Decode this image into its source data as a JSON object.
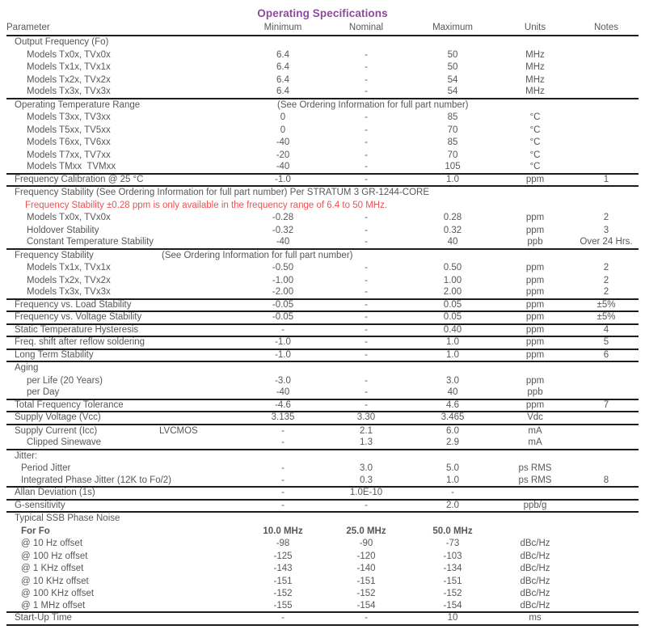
{
  "title": "Operating Specifications",
  "colors": {
    "title_purple": "#8d4a9b",
    "warning_red": "#f15050",
    "body_gray": "#565759",
    "rule_black": "#1c1c1c"
  },
  "columns": [
    "Parameter",
    "Minimum",
    "Nominal",
    "Maximum",
    "Units",
    "Notes"
  ],
  "see_ordering_note": "(See Ordering Information for full part number)",
  "rows": [
    {
      "type": "section",
      "label": "Output Frequency (Fo)",
      "indent": 0,
      "rule": false
    },
    {
      "type": "data",
      "label": "Models Tx0x, TVx0x",
      "indent": 1,
      "min": "6.4",
      "nom": "-",
      "max": "50",
      "units": "MHz",
      "notes": "",
      "rule": false
    },
    {
      "type": "data",
      "label": "Models Tx1x, TVx1x",
      "indent": 1,
      "min": "6.4",
      "nom": "-",
      "max": "50",
      "units": "MHz",
      "notes": "",
      "rule": false
    },
    {
      "type": "data",
      "label": "Models Tx2x, TVx2x",
      "indent": 1,
      "min": "6.4",
      "nom": "-",
      "max": "54",
      "units": "MHz",
      "notes": "",
      "rule": false
    },
    {
      "type": "data",
      "label": "Models Tx3x, TVx3x",
      "indent": 1,
      "min": "6.4",
      "nom": "-",
      "max": "54",
      "units": "MHz",
      "notes": "",
      "rule": true
    },
    {
      "type": "span_mid",
      "label": "Operating Temperature Range",
      "indent": 0,
      "span_text": "(See Ordering Information for full part number)",
      "rule": false
    },
    {
      "type": "data",
      "label": "Models T3xx, TV3xx",
      "indent": 1,
      "min": "0",
      "nom": "-",
      "max": "85",
      "units": "°C",
      "notes": "",
      "rule": false
    },
    {
      "type": "data",
      "label": "Models T5xx, TV5xx",
      "indent": 1,
      "min": "0",
      "nom": "-",
      "max": "70",
      "units": "°C",
      "notes": "",
      "rule": false
    },
    {
      "type": "data",
      "label": "Models T6xx, TV6xx",
      "indent": 1,
      "min": "-40",
      "nom": "-",
      "max": "85",
      "units": "°C",
      "notes": "",
      "rule": false
    },
    {
      "type": "data",
      "label": "Models T7xx, TV7xx",
      "indent": 1,
      "min": "-20",
      "nom": "-",
      "max": "70",
      "units": "°C",
      "notes": "",
      "rule": false
    },
    {
      "type": "data",
      "label": "Models TMxx  TVMxx",
      "indent": 1,
      "min": "-40",
      "nom": "-",
      "max": "105",
      "units": "°C",
      "notes": "",
      "rule": true
    },
    {
      "type": "data",
      "label": "Frequency Calibration @ 25 °C",
      "indent": 0,
      "min": "-1.0",
      "nom": "-",
      "max": "1.0",
      "units": "ppm",
      "notes": "1",
      "rule": true
    },
    {
      "type": "full",
      "label": "Frequency Stability (See Ordering Information for full part number) Per STRATUM 3 GR-1244-CORE",
      "indent": 0,
      "rule": false
    },
    {
      "type": "red",
      "label": "Frequency Stability ±0.28 ppm is only available in the frequency range of 6.4 to 50 MHz.",
      "indent": 0,
      "rule": false
    },
    {
      "type": "data",
      "label": "Models Tx0x, TVx0x",
      "indent": 1,
      "min": "-0.28",
      "nom": "-",
      "max": "0.28",
      "units": "ppm",
      "notes": "2",
      "rule": false
    },
    {
      "type": "data",
      "label": "Holdover Stability",
      "indent": 1,
      "min": "-0.32",
      "nom": "-",
      "max": "0.32",
      "units": "ppm",
      "notes": "3",
      "rule": false
    },
    {
      "type": "data",
      "label": "Constant Temperature Stability",
      "indent": 1,
      "min": "-40",
      "nom": "-",
      "max": "40",
      "units": "ppb",
      "notes": "Over 24 Hrs.",
      "rule": true
    },
    {
      "type": "span_near",
      "label": "Frequency Stability",
      "indent": 0,
      "span_text": "(See Ordering Information for full part number)",
      "rule": false
    },
    {
      "type": "data",
      "label": "Models Tx1x, TVx1x",
      "indent": 1,
      "min": "-0.50",
      "nom": "-",
      "max": "0.50",
      "units": "ppm",
      "notes": "2",
      "rule": false
    },
    {
      "type": "data",
      "label": "Models Tx2x, TVx2x",
      "indent": 1,
      "min": "-1.00",
      "nom": "-",
      "max": "1.00",
      "units": "ppm",
      "notes": "2",
      "rule": false
    },
    {
      "type": "data",
      "label": "Models Tx3x, TVx3x",
      "indent": 1,
      "min": "-2.00",
      "nom": "-",
      "max": "2.00",
      "units": "ppm",
      "notes": "2",
      "rule": true
    },
    {
      "type": "data",
      "label": "Frequency vs. Load Stability",
      "indent": 0,
      "min": "-0.05",
      "nom": "-",
      "max": "0.05",
      "units": "ppm",
      "notes": "±5%",
      "rule": true
    },
    {
      "type": "data",
      "label": "Frequency vs. Voltage Stability",
      "indent": 0,
      "min": "-0.05",
      "nom": "-",
      "max": "0.05",
      "units": "ppm",
      "notes": "±5%",
      "rule": true
    },
    {
      "type": "data",
      "label": "Static Temperature Hysteresis",
      "indent": 0,
      "min": "-",
      "nom": "-",
      "max": "0.40",
      "units": "ppm",
      "notes": "4",
      "rule": true
    },
    {
      "type": "data",
      "label": "Freq. shift after reflow soldering",
      "indent": 0,
      "min": "-1.0",
      "nom": "-",
      "max": "1.0",
      "units": "ppm",
      "notes": "5",
      "rule": true
    },
    {
      "type": "data",
      "label": "Long Term Stability",
      "indent": 0,
      "min": "-1.0",
      "nom": "-",
      "max": "1.0",
      "units": "ppm",
      "notes": "6",
      "rule": true
    },
    {
      "type": "section",
      "label": "Aging",
      "indent": 0,
      "rule": false
    },
    {
      "type": "data",
      "label": "per Life (20 Years)",
      "indent": 1,
      "min": "-3.0",
      "nom": "-",
      "max": "3.0",
      "units": "ppm",
      "notes": "",
      "rule": false
    },
    {
      "type": "data",
      "label": "per Day",
      "indent": 1,
      "min": "-40",
      "nom": "-",
      "max": "40",
      "units": "ppb",
      "notes": "",
      "rule": true
    },
    {
      "type": "data",
      "label": "Total Frequency Tolerance",
      "indent": 0,
      "min": "-4.6",
      "nom": "-",
      "max": "4.6",
      "units": "ppm",
      "notes": "7",
      "rule": true
    },
    {
      "type": "data",
      "label": "Supply Voltage (Vcc)",
      "indent": 0,
      "min": "3.135",
      "nom": "3.30",
      "max": "3.465",
      "units": "Vdc",
      "notes": "",
      "rule": true
    },
    {
      "type": "data_sub",
      "label": "Supply Current (Icc)",
      "sublabel": "LVCMOS",
      "indent": 0,
      "min": "-",
      "nom": "2.1",
      "max": "6.0",
      "units": "mA",
      "notes": "",
      "rule": false
    },
    {
      "type": "data",
      "label": "Clipped Sinewave",
      "indent": 1,
      "min": "-",
      "nom": "1.3",
      "max": "2.9",
      "units": "mA",
      "notes": "",
      "rule": true
    },
    {
      "type": "section",
      "label": "Jitter:",
      "indent": 0,
      "rule": false
    },
    {
      "type": "data",
      "label": "Period Jitter",
      "indent": 2,
      "min": "-",
      "nom": "3.0",
      "max": "5.0",
      "units": "ps RMS",
      "notes": "",
      "rule": false
    },
    {
      "type": "data",
      "label": "Integrated Phase Jitter (12K to Fo/2)",
      "indent": 2,
      "min": "-",
      "nom": "0.3",
      "max": "1.0",
      "units": "ps RMS",
      "notes": "8",
      "rule": true
    },
    {
      "type": "data",
      "label": "Allan Deviation (1s)",
      "indent": 0,
      "min": "-",
      "nom": "1.0E-10",
      "max": "-",
      "units": "",
      "notes": "",
      "rule": true
    },
    {
      "type": "data",
      "label": "G-sensitivity",
      "indent": 0,
      "min": "-",
      "nom": "-",
      "max": "2.0",
      "units": "ppb/g",
      "notes": "",
      "rule": true
    },
    {
      "type": "section",
      "label": "Typical SSB Phase Noise",
      "indent": 0,
      "rule": false
    },
    {
      "type": "data",
      "label": "For Fo",
      "indent": 2,
      "min": "10.0 MHz",
      "nom": "25.0 MHz",
      "max": "50.0 MHz",
      "units": "",
      "notes": "",
      "rule": false,
      "bold": true
    },
    {
      "type": "data",
      "label": "@ 10 Hz offset",
      "indent": 2,
      "min": "-98",
      "nom": "-90",
      "max": "-73",
      "units": "dBc/Hz",
      "notes": "",
      "rule": false
    },
    {
      "type": "data",
      "label": "@ 100 Hz offset",
      "indent": 2,
      "min": "-125",
      "nom": "-120",
      "max": "-103",
      "units": "dBc/Hz",
      "notes": "",
      "rule": false
    },
    {
      "type": "data",
      "label": "@ 1 KHz offset",
      "indent": 2,
      "min": "-143",
      "nom": "-140",
      "max": "-134",
      "units": "dBc/Hz",
      "notes": "",
      "rule": false
    },
    {
      "type": "data",
      "label": "@ 10 KHz offset",
      "indent": 2,
      "min": "-151",
      "nom": "-151",
      "max": "-151",
      "units": "dBc/Hz",
      "notes": "",
      "rule": false
    },
    {
      "type": "data",
      "label": "@ 100 KHz offset",
      "indent": 2,
      "min": "-152",
      "nom": "-152",
      "max": "-152",
      "units": "dBc/Hz",
      "notes": "",
      "rule": false
    },
    {
      "type": "data",
      "label": "@ 1 MHz offset",
      "indent": 2,
      "min": "-155",
      "nom": "-154",
      "max": "-154",
      "units": "dBc/Hz",
      "notes": "",
      "rule": true
    },
    {
      "type": "data",
      "label": "Start-Up Time",
      "indent": 0,
      "min": "-",
      "nom": "-",
      "max": "10",
      "units": "ms",
      "notes": "",
      "rule": true
    }
  ]
}
